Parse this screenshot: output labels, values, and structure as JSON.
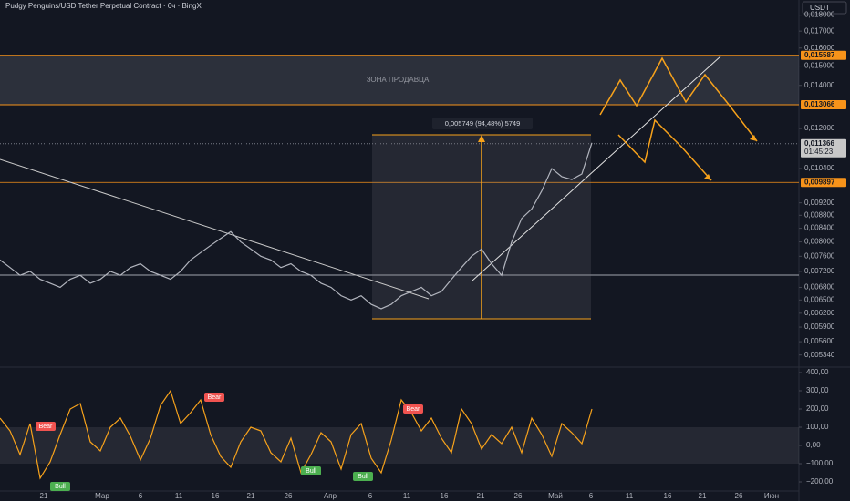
{
  "chart_data": {
    "type": "line",
    "title": "Pudgy Penguins/USD Tether Perpetual Contract · 6ч · BingX",
    "currency": "USDT",
    "zone_label": "ЗОНА ПРОДАВЦА",
    "measure_label": "0,005749 (94,48%) 5749",
    "log_scale": true,
    "ylim": [
      0.00513,
      0.019
    ],
    "yticks": [
      {
        "value": 0.018,
        "label": "0,018000"
      },
      {
        "value": 0.017,
        "label": "0,017000"
      },
      {
        "value": 0.016,
        "label": "0,016000"
      },
      {
        "value": 0.015,
        "label": "0,015000"
      },
      {
        "value": 0.014,
        "label": "0,014000"
      },
      {
        "value": 0.012,
        "label": "0,012000"
      },
      {
        "value": 0.0104,
        "label": "0,010400"
      },
      {
        "value": 0.0092,
        "label": "0,009200"
      },
      {
        "value": 0.0088,
        "label": "0,008800"
      },
      {
        "value": 0.0084,
        "label": "0,008400"
      },
      {
        "value": 0.008,
        "label": "0,008000"
      },
      {
        "value": 0.0076,
        "label": "0,007600"
      },
      {
        "value": 0.0072,
        "label": "0,007200"
      },
      {
        "value": 0.0068,
        "label": "0,006800"
      },
      {
        "value": 0.0065,
        "label": "0,006500"
      },
      {
        "value": 0.0062,
        "label": "0,006200"
      },
      {
        "value": 0.0059,
        "label": "0,005900"
      },
      {
        "value": 0.0056,
        "label": "0,005600"
      },
      {
        "value": 0.00534,
        "label": "0,005340"
      }
    ],
    "badges": [
      {
        "value": 0.015587,
        "label": "0,015587",
        "color": "#f7931a"
      },
      {
        "value": 0.013066,
        "label": "0,013066",
        "color": "#f7931a"
      },
      {
        "value": 0.011366,
        "label": "0,011366",
        "color": "#c8c8c8",
        "timer": "01:45:23"
      },
      {
        "value": 0.009897,
        "label": "0,009897",
        "color": "#f7931a"
      }
    ],
    "x_labels": [
      "21",
      "Мар",
      "6",
      "11",
      "16",
      "21",
      "26",
      "Апр",
      "6",
      "11",
      "16",
      "21",
      "26",
      "Май",
      "6",
      "11",
      "16",
      "21",
      "26",
      "Июн"
    ],
    "series": [
      {
        "name": "Price",
        "color": "#b2b5be",
        "values": [
          0.0075,
          0.0073,
          0.0071,
          0.0072,
          0.007,
          0.0069,
          0.0068,
          0.007,
          0.0071,
          0.0069,
          0.007,
          0.0072,
          0.0071,
          0.0073,
          0.0074,
          0.0072,
          0.0071,
          0.007,
          0.0072,
          0.0075,
          0.0077,
          0.0079,
          0.0081,
          0.0083,
          0.008,
          0.0078,
          0.0076,
          0.0075,
          0.0073,
          0.0074,
          0.0072,
          0.0071,
          0.0069,
          0.0068,
          0.0066,
          0.0065,
          0.0066,
          0.0064,
          0.0063,
          0.0064,
          0.0066,
          0.0067,
          0.0068,
          0.0066,
          0.0067,
          0.007,
          0.0073,
          0.0076,
          0.0078,
          0.0074,
          0.0071,
          0.008,
          0.0087,
          0.009,
          0.0096,
          0.0104,
          0.0101,
          0.01,
          0.0102,
          0.0114
        ]
      }
    ],
    "oscillator": {
      "color": "#f7a21b",
      "ylim": [
        -255,
        420
      ],
      "yticks": [
        {
          "value": 400,
          "label": "400,00"
        },
        {
          "value": 300,
          "label": "300,00"
        },
        {
          "value": 200,
          "label": "200,00"
        },
        {
          "value": 100,
          "label": "100,00"
        },
        {
          "value": 0,
          "label": "0,00"
        },
        {
          "value": -100,
          "label": "−100,00"
        },
        {
          "value": -200,
          "label": "−200,00"
        }
      ],
      "values": [
        150,
        80,
        -50,
        120,
        -180,
        -90,
        60,
        200,
        230,
        20,
        -30,
        100,
        150,
        50,
        -80,
        40,
        220,
        300,
        120,
        180,
        250,
        60,
        -60,
        -120,
        20,
        100,
        80,
        -40,
        -90,
        40,
        -150,
        -50,
        70,
        20,
        -130,
        60,
        120,
        -70,
        -150,
        30,
        250,
        180,
        80,
        150,
        40,
        -40,
        200,
        120,
        -20,
        60,
        10,
        100,
        -40,
        150,
        60,
        -60,
        120,
        70,
        10,
        200
      ],
      "signals": [
        {
          "label": "Bear",
          "color": "#f05350"
        },
        {
          "label": "Bear",
          "color": "#f05350"
        },
        {
          "label": "Bear",
          "color": "#f05350"
        },
        {
          "label": "Bull",
          "color": "#4caf50"
        },
        {
          "label": "Bull",
          "color": "#4caf50"
        },
        {
          "label": "Bull",
          "color": "#4caf50"
        }
      ]
    }
  }
}
